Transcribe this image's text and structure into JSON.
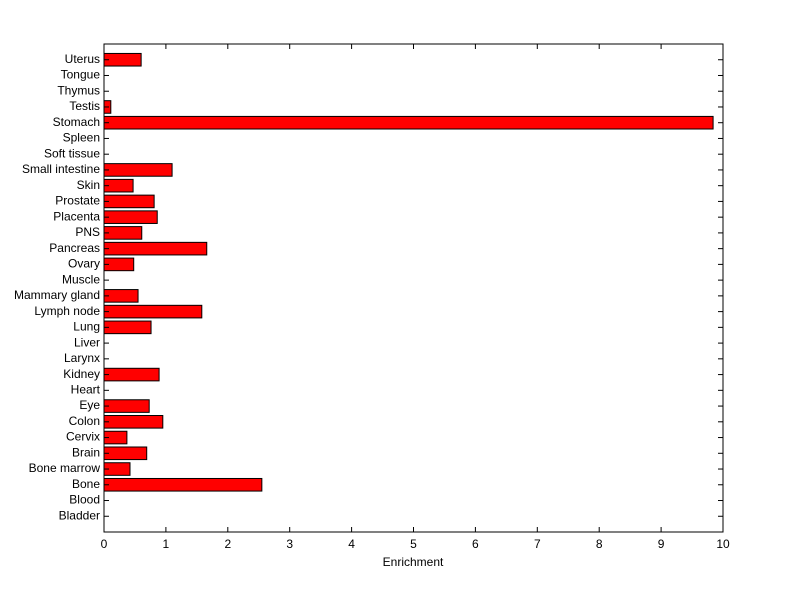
{
  "chart_data": {
    "type": "barh",
    "x_label": "Enrichment",
    "categories": [
      "Bladder",
      "Blood",
      "Bone",
      "Bone marrow",
      "Brain",
      "Cervix",
      "Colon",
      "Eye",
      "Heart",
      "Kidney",
      "Larynx",
      "Liver",
      "Lung",
      "Lymph node",
      "Mammary gland",
      "Muscle",
      "Ovary",
      "Pancreas",
      "PNS",
      "Placenta",
      "Prostate",
      "Skin",
      "Small intestine",
      "Soft tissue",
      "Spleen",
      "Stomach",
      "Testis",
      "Thymus",
      "Tongue",
      "Uterus"
    ],
    "values": [
      0,
      0,
      2.55,
      0.42,
      0.69,
      0.37,
      0.95,
      0.73,
      0,
      0.89,
      0,
      0,
      0.76,
      1.58,
      0.55,
      0,
      0.48,
      1.66,
      0.61,
      0.86,
      0.81,
      0.47,
      1.1,
      0,
      0,
      9.84,
      0.11,
      0,
      0,
      0.6
    ],
    "color": "#ff0000",
    "xlim": [
      0,
      10
    ],
    "xticks": [
      0,
      1,
      2,
      3,
      4,
      5,
      6,
      7,
      8,
      9,
      10
    ]
  }
}
